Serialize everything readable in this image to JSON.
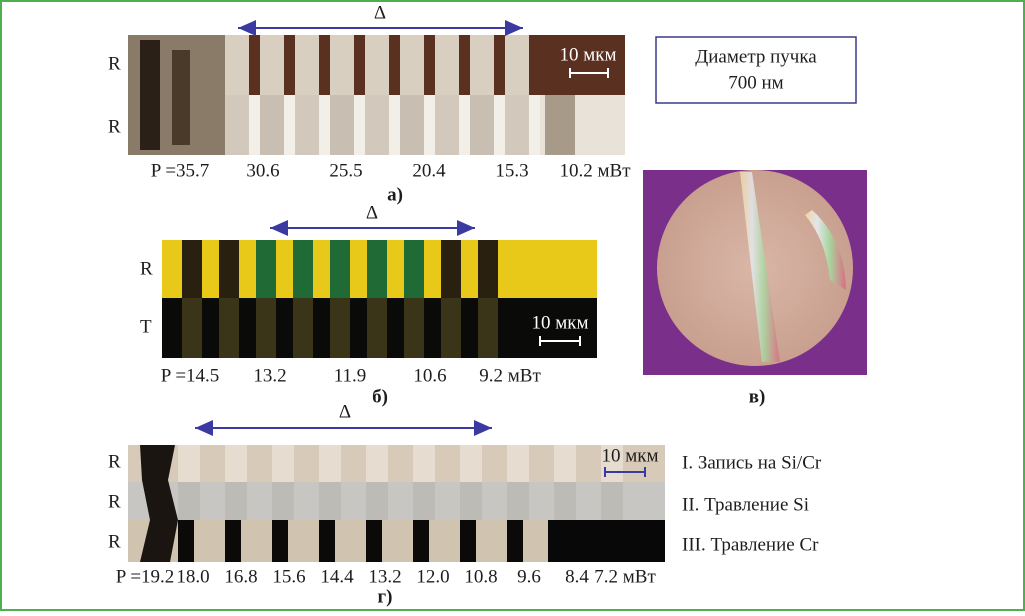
{
  "panel_a": {
    "row_labels": [
      "R",
      "R"
    ],
    "delta": "Δ",
    "scale": "10 мкм",
    "powers": [
      "P =35.7",
      "30.6",
      "25.5",
      "20.4",
      "15.3",
      "10.2 мВт"
    ],
    "caption": "а)"
  },
  "beam_box": {
    "line1": "Диаметр пучка",
    "line2": "700 нм"
  },
  "panel_b": {
    "row_labels": [
      "R",
      "T"
    ],
    "delta": "Δ",
    "scale": "10 мкм",
    "powers": [
      "P =14.5",
      "13.2",
      "11.9",
      "10.6",
      "9.2 мВт"
    ],
    "caption": "б)"
  },
  "panel_c": {
    "caption": "в)"
  },
  "panel_d": {
    "row_labels": [
      "R",
      "R",
      "R"
    ],
    "delta": "Δ",
    "scale": "10 мкм",
    "steps": [
      "I.  Запись на Si/Cr",
      "II.  Травление Si",
      "III. Травление Cr"
    ],
    "powers": [
      "P =19.2",
      "18.0",
      "16.8",
      "15.6",
      "14.4",
      "13.2",
      "12.0",
      "10.8",
      "9.6",
      "8.4",
      "7.2 мВт"
    ],
    "caption": "г)"
  }
}
